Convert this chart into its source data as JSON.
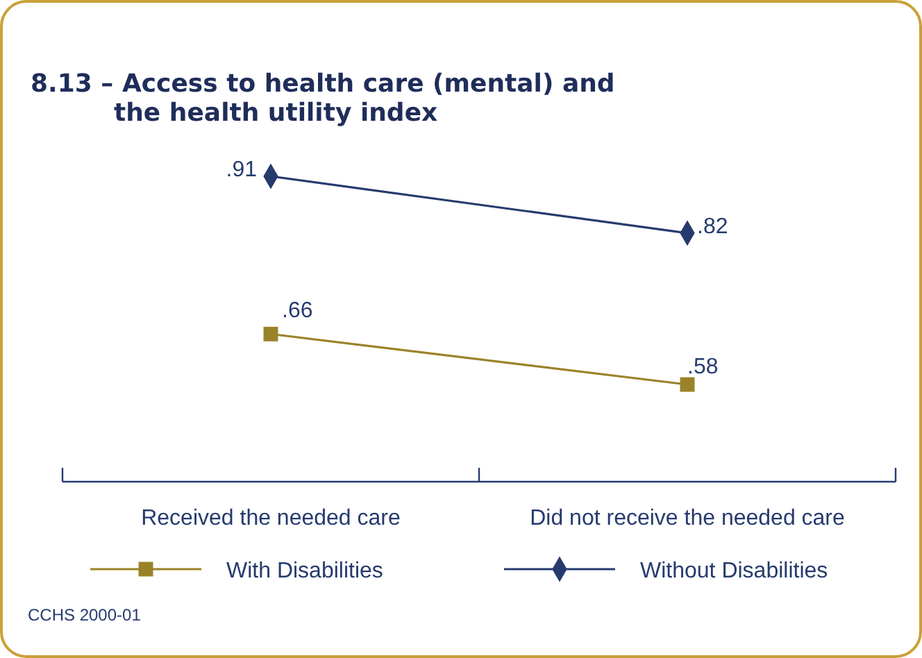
{
  "chart_data": {
    "type": "line",
    "title": "8.13 – Access to health care (mental) and the health utility index",
    "categories": [
      "Received the needed care",
      "Did not receive the needed care"
    ],
    "series": [
      {
        "name": "With Disabilities",
        "color": "#9a8228",
        "values": [
          0.66,
          0.58
        ],
        "value_labels": [
          ".66",
          ".58"
        ]
      },
      {
        "name": "Without Disabilities",
        "color": "#263a6e",
        "values": [
          0.91,
          0.82
        ],
        "value_labels": [
          ".91",
          ".82"
        ],
        "marker": "diamond"
      }
    ],
    "marker": "square",
    "legend": "bottom",
    "tick_labels": "x",
    "annotations": [
      "CCHS 2000-01"
    ]
  }
}
